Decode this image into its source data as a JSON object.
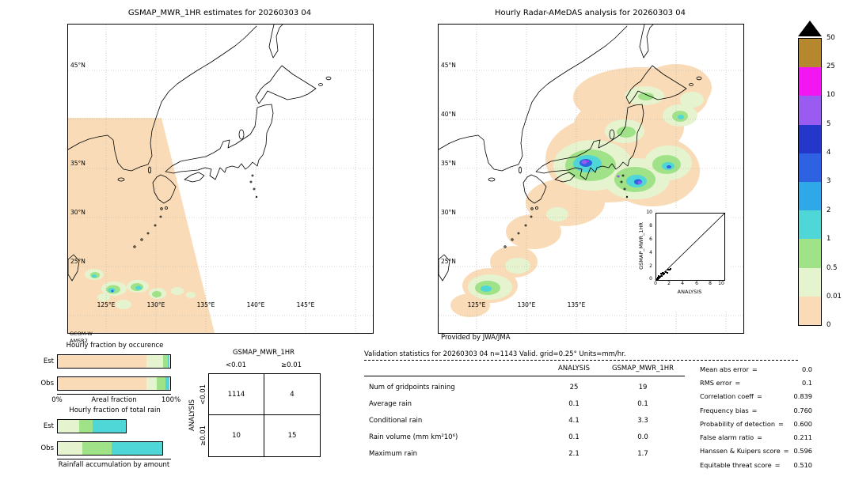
{
  "left_map": {
    "title": "GSMAP_MWR_1HR estimates for 20260303 04",
    "lat_labels": [
      "45°N",
      "35°N",
      "30°N",
      "25°N"
    ],
    "lon_labels": [
      "125°E",
      "130°E",
      "135°E",
      "140°E",
      "145°E"
    ],
    "source": [
      "GCOM-W",
      "AMSR2"
    ]
  },
  "right_map": {
    "title": "Hourly Radar-AMeDAS analysis for 20260303 04",
    "lat_labels": [
      "45°N",
      "40°N",
      "35°N",
      "30°N",
      "25°N"
    ],
    "lon_labels": [
      "125°E",
      "130°E",
      "135°E"
    ],
    "credit": "Provided by JWA/JMA"
  },
  "colorbar": {
    "labels": [
      "50",
      "25",
      "10",
      "5",
      "4",
      "3",
      "2",
      "1",
      "0.5",
      "0.01",
      "0"
    ],
    "colors": [
      "#B5872E",
      "#F316F3",
      "#9A5BF0",
      "#2337C8",
      "#2E62E2",
      "#2FA8E8",
      "#4FD6D6",
      "#9FE287",
      "#E5F4CE",
      "#F9DCB7"
    ],
    "units": "mm/hr"
  },
  "contingency_note": "counts of gridpoints, ANALYSIS rows vs GSMAP_MWR_1HR columns",
  "validation": {
    "title": "Validation statistics for 20260303 04  n=1143 Valid. grid=0.25° Units=mm/hr.",
    "col_headers": [
      "ANALYSIS",
      "GSMAP_MWR_1HR"
    ],
    "rows": [
      {
        "label": "Num of gridpoints raining",
        "analysis": "25",
        "gsmap": "19"
      },
      {
        "label": "Average rain",
        "analysis": "0.1",
        "gsmap": "0.1"
      },
      {
        "label": "Conditional rain",
        "analysis": "4.1",
        "gsmap": "3.3"
      },
      {
        "label": "Rain volume (mm km²10⁶)",
        "analysis": "0.1",
        "gsmap": "0.0"
      },
      {
        "label": "Maximum rain",
        "analysis": "2.1",
        "gsmap": "1.7"
      }
    ],
    "metrics": [
      {
        "label": "Mean abs error",
        "value": "0.0"
      },
      {
        "label": "RMS error",
        "value": "0.1"
      },
      {
        "label": "Correlation coeff",
        "value": "0.839"
      },
      {
        "label": "Frequency bias",
        "value": "0.760"
      },
      {
        "label": "Probability of detection",
        "value": "0.600"
      },
      {
        "label": "False alarm ratio",
        "value": "0.211"
      },
      {
        "label": "Hanssen & Kuipers score",
        "value": "0.596"
      },
      {
        "label": "Equitable threat score",
        "value": "0.510"
      }
    ]
  },
  "chart_data": [
    {
      "type": "bar",
      "id": "hourly-fraction-by-occurrence",
      "title": "Hourly fraction by occurence",
      "categories": [
        "Est",
        "Obs"
      ],
      "stacked": true,
      "full_width": true,
      "xlim": [
        0,
        100
      ],
      "axis": {
        "left": "0%",
        "center": "Areal fraction",
        "right": "100%"
      },
      "series": [
        {
          "name": "<0.01 (no rain)",
          "color": "#F9DCB7",
          "values": [
            79,
            79
          ]
        },
        {
          "name": "0.01-0.5",
          "color": "#E5F4CE",
          "values": [
            15,
            9
          ]
        },
        {
          "name": "0.5-1",
          "color": "#9FE287",
          "values": [
            4,
            8
          ]
        },
        {
          "name": "1-2",
          "color": "#4FD6D6",
          "values": [
            1,
            3
          ]
        }
      ]
    },
    {
      "type": "bar",
      "id": "hourly-fraction-of-total-rain",
      "title": "Hourly fraction of total rain",
      "categories": [
        "Est",
        "Obs"
      ],
      "stacked": true,
      "full_width": false,
      "xlim": [
        0,
        100
      ],
      "bottom_label": "Rainfall accumulation by amount",
      "series": [
        {
          "name": "0.01-0.5",
          "color": "#E5F4CE",
          "values": [
            19,
            22
          ]
        },
        {
          "name": "0.5-1",
          "color": "#9FE287",
          "values": [
            12,
            26
          ]
        },
        {
          "name": "1-2",
          "color": "#4FD6D6",
          "values": [
            30,
            45
          ]
        }
      ]
    },
    {
      "type": "scatter",
      "id": "analysis-vs-gsmap-inset",
      "xlabel": "ANALYSIS",
      "ylabel": "GSMAP_MWR_1HR",
      "xlim": [
        0,
        10
      ],
      "ylim": [
        0,
        10
      ],
      "ticks": [
        "0",
        "2",
        "4",
        "6",
        "8",
        "10"
      ],
      "diagonal": true,
      "points": [
        [
          0.05,
          0.05
        ],
        [
          0.1,
          0.15
        ],
        [
          0.15,
          0.05
        ],
        [
          0.2,
          0.3
        ],
        [
          0.25,
          0.1
        ],
        [
          0.3,
          0.45
        ],
        [
          0.35,
          0.2
        ],
        [
          0.4,
          0.6
        ],
        [
          0.5,
          0.35
        ],
        [
          0.6,
          0.5
        ],
        [
          0.7,
          0.9
        ],
        [
          0.8,
          0.55
        ],
        [
          0.9,
          1.1
        ],
        [
          1.0,
          0.8
        ],
        [
          1.2,
          1.0
        ],
        [
          1.4,
          1.2
        ],
        [
          1.6,
          1.1
        ],
        [
          1.8,
          1.5
        ],
        [
          2.0,
          1.6
        ],
        [
          2.1,
          1.7
        ]
      ]
    },
    {
      "type": "table",
      "id": "contingency-table",
      "col_group": "GSMAP_MWR_1HR",
      "row_group": "ANALYSIS",
      "cols": [
        "<0.01",
        "≥0.01"
      ],
      "rows": [
        "<0.01",
        "≥0.01"
      ],
      "values": [
        [
          1114,
          4
        ],
        [
          10,
          15
        ]
      ]
    }
  ]
}
